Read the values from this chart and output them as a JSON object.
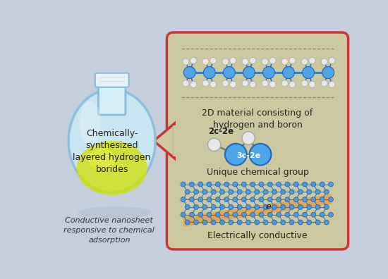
{
  "bg_color": "#c5cedd",
  "panel_bg": "#ccc9a0",
  "panel_border": "#cc3333",
  "flask_body_color": "#c8e8f5",
  "flask_edge_color": "#88bbdd",
  "flask_neck_color": "#d8eef8",
  "flask_cap_color": "#e8f2f8",
  "liquid_color": "#d8e820",
  "flask_text": "Chemically-\nsynthesized\nlayered hydrogen\nborides",
  "left_caption": "Conductive nanosheet\nresponsive to chemical\nadsorption",
  "label_2d": "2D material consisting of\nhydrogen and boron",
  "label_unique": "Unique chemical group",
  "label_electric": "Electrically conductive",
  "label_2c2e": "2c-2e",
  "label_3c2e": "3c-2e",
  "boron_color": "#4da6e8",
  "boron_edge": "#2266bb",
  "hydrogen_color": "#e8e8e8",
  "hydrogen_edge": "#aaaaaa",
  "nanosheet_blue": "#4d9ad4",
  "nanosheet_orange": "#e8a040",
  "text_color_dark": "#222222",
  "bond_color": "#3377bb"
}
